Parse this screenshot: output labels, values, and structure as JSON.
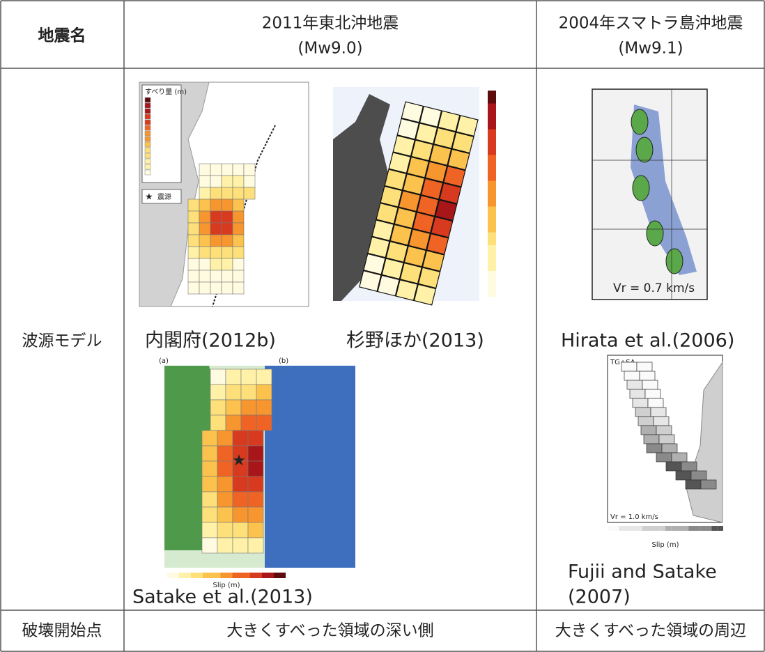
{
  "header": {
    "label": "地震名",
    "tohoku": [
      "2011年東北沖地震",
      "(Mw9.0)"
    ],
    "sumatra": [
      "2004年スマトラ島沖地震",
      "(Mw9.1)"
    ]
  },
  "source_model": {
    "label": "波源モデル",
    "figures": [
      {
        "caption": "内閣府(2012b)",
        "legend_title": "すべり量 (m)",
        "legend_epicenter": "震源"
      },
      {
        "caption": "杉野ほか(2013)"
      },
      {
        "caption": "Satake et al.(2013)",
        "panel_labels": [
          "(a)",
          "(b)"
        ],
        "axis_label": "Slip (m)"
      },
      {
        "caption": "Hirata et al.(2006)",
        "annotation": "Vr = 0.7 km/s"
      },
      {
        "caption": [
          "Fujii and Satake",
          "(2007)"
        ],
        "annotation": "Vr = 1.0 km/s",
        "legend": "TG+SA",
        "axis_label": "Slip (m)"
      }
    ]
  },
  "rupture_start": {
    "label": "破壊開始点",
    "tohoku": "大きくすべった領域の深い側",
    "sumatra": "大きくすべった領域の周辺"
  }
}
